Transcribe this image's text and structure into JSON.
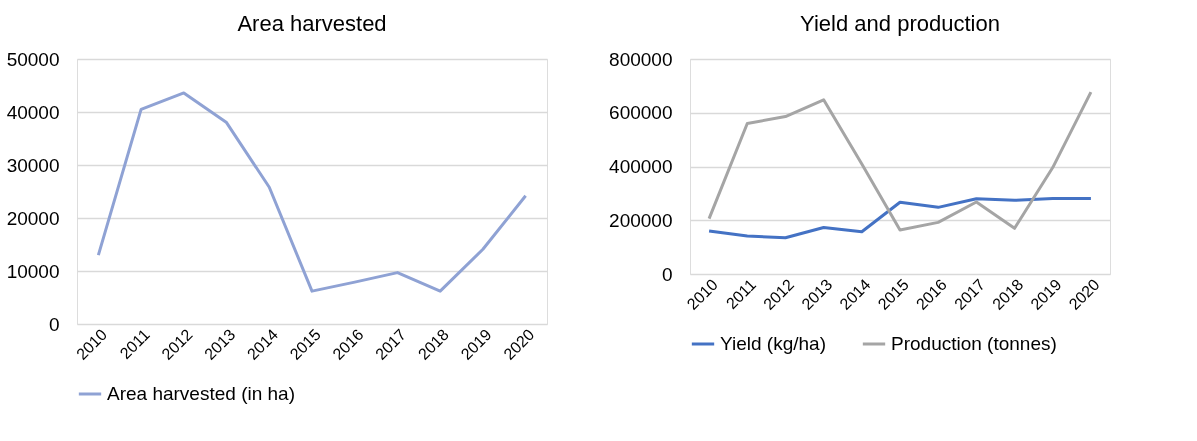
{
  "chart_data": [
    {
      "type": "line",
      "title": "Area harvested",
      "categories": [
        "2010",
        "2011",
        "2012",
        "2013",
        "2014",
        "2015",
        "2016",
        "2017",
        "2018",
        "2019",
        "2020"
      ],
      "series": [
        {
          "name": "Area harvested (in ha)",
          "color": "#8fa2d4",
          "values": [
            13000,
            40500,
            43600,
            38000,
            25800,
            6200,
            7900,
            9700,
            6200,
            14100,
            24200
          ]
        }
      ],
      "ylim": [
        0,
        50000
      ],
      "yticks": [
        0,
        10000,
        20000,
        30000,
        40000,
        50000
      ],
      "grid": "y",
      "legend": "bottom",
      "line_style": "solid",
      "marker": "none"
    },
    {
      "type": "line",
      "title": "Yield and production",
      "categories": [
        "2010",
        "2011",
        "2012",
        "2013",
        "2014",
        "2015",
        "2016",
        "2017",
        "2018",
        "2019",
        "2020"
      ],
      "series": [
        {
          "name": "Yield (kg/ha)",
          "color": "#4472c4",
          "values": [
            160000,
            141000,
            135000,
            173000,
            157000,
            267000,
            248000,
            280000,
            274000,
            281000,
            281000
          ]
        },
        {
          "name": "Production (tonnes)",
          "color": "#a5a5a5",
          "values": [
            206000,
            560000,
            586000,
            648000,
            409000,
            164000,
            192000,
            268000,
            170000,
            396000,
            677000
          ]
        }
      ],
      "ylim": [
        0,
        800000
      ],
      "yticks": [
        0,
        200000,
        400000,
        600000,
        800000
      ],
      "grid": "y",
      "legend": "bottom",
      "line_style": "solid",
      "marker": "none"
    }
  ]
}
